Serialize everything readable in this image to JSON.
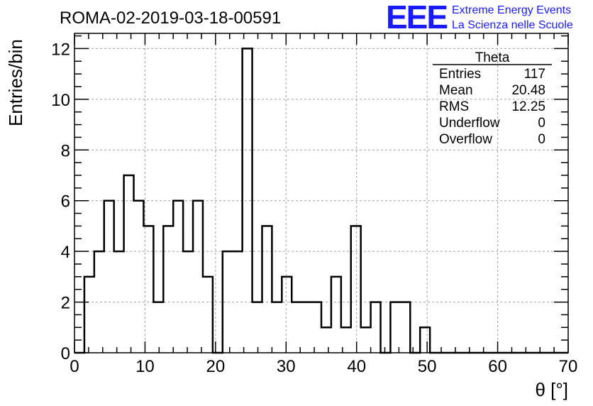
{
  "header": {
    "title": "ROMA-02-2019-03-18-00591",
    "logo_text": "EEE",
    "logo_line1": "Extreme Energy Events",
    "logo_line2": "La Scienza nelle Scuole",
    "logo_color": "#1a1aff"
  },
  "stats": {
    "name": "Theta",
    "rows": [
      {
        "label": "Entries",
        "value": "117"
      },
      {
        "label": "Mean",
        "value": "20.48"
      },
      {
        "label": "RMS",
        "value": "12.25"
      },
      {
        "label": "Underflow",
        "value": "0"
      },
      {
        "label": "Overflow",
        "value": "0"
      }
    ]
  },
  "chart_data": {
    "type": "histogram",
    "title": "ROMA-02-2019-03-18-00591",
    "xlabel": "θ [°]",
    "ylabel": "Entries/bin",
    "xlim": [
      0,
      70
    ],
    "ylim": [
      0,
      12.6
    ],
    "bin_width": 1.4,
    "bin_start": 0,
    "values": [
      0,
      3,
      4,
      6,
      4,
      7,
      6,
      5,
      2,
      5,
      6,
      4,
      6,
      3,
      0,
      4,
      4,
      12,
      2,
      5,
      2,
      3,
      2,
      2,
      2,
      1,
      3,
      1,
      5,
      1,
      2,
      0,
      2,
      2,
      0,
      1,
      0,
      0,
      0,
      0,
      0,
      0,
      0,
      0,
      0,
      0,
      0,
      0,
      0,
      0
    ],
    "x_ticks": [
      0,
      10,
      20,
      30,
      40,
      50,
      60,
      70
    ],
    "y_ticks": [
      0,
      2,
      4,
      6,
      8,
      10,
      12
    ],
    "grid": true,
    "line_color": "#000000"
  }
}
